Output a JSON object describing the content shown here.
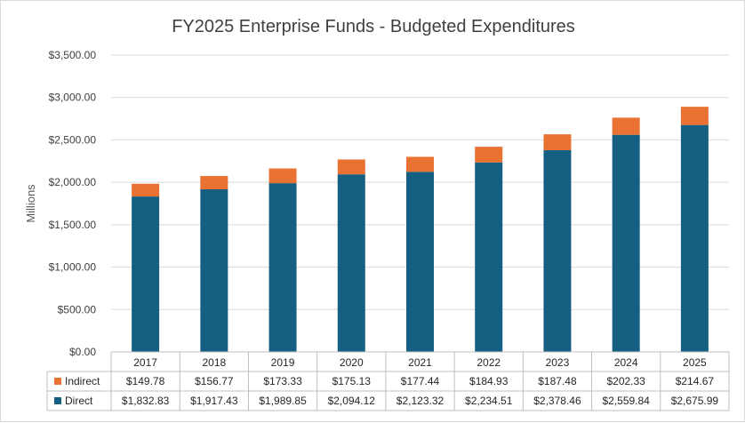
{
  "chart_data": {
    "type": "bar",
    "stacked": true,
    "title": "FY2025 Enterprise Funds - Budgeted Expenditures",
    "ylabel": "Millions",
    "xlabel": "",
    "ylim": [
      0,
      3500
    ],
    "yticks": [
      "$0.00",
      "$500.00",
      "$1,000.00",
      "$1,500.00",
      "$2,000.00",
      "$2,500.00",
      "$3,000.00",
      "$3,500.00"
    ],
    "grid": true,
    "legend": "data-table",
    "categories": [
      "2017",
      "2018",
      "2019",
      "2020",
      "2021",
      "2022",
      "2023",
      "2024",
      "2025"
    ],
    "series": [
      {
        "name": "Direct",
        "color": "#156082",
        "values": [
          1832.83,
          1917.43,
          1989.85,
          2094.12,
          2123.32,
          2234.51,
          2378.46,
          2559.84,
          2675.99
        ],
        "labels": [
          "$1,832.83",
          "$1,917.43",
          "$1,989.85",
          "$2,094.12",
          "$2,123.32",
          "$2,234.51",
          "$2,378.46",
          "$2,559.84",
          "$2,675.99"
        ]
      },
      {
        "name": "Indirect",
        "color": "#E97132",
        "values": [
          149.78,
          156.77,
          173.33,
          175.13,
          177.44,
          184.93,
          187.48,
          202.33,
          214.67
        ],
        "labels": [
          "$149.78",
          "$156.77",
          "$173.33",
          "$175.13",
          "$177.44",
          "$184.93",
          "$187.48",
          "$202.33",
          "$214.67"
        ]
      }
    ],
    "table_order": [
      "Indirect",
      "Direct"
    ]
  }
}
